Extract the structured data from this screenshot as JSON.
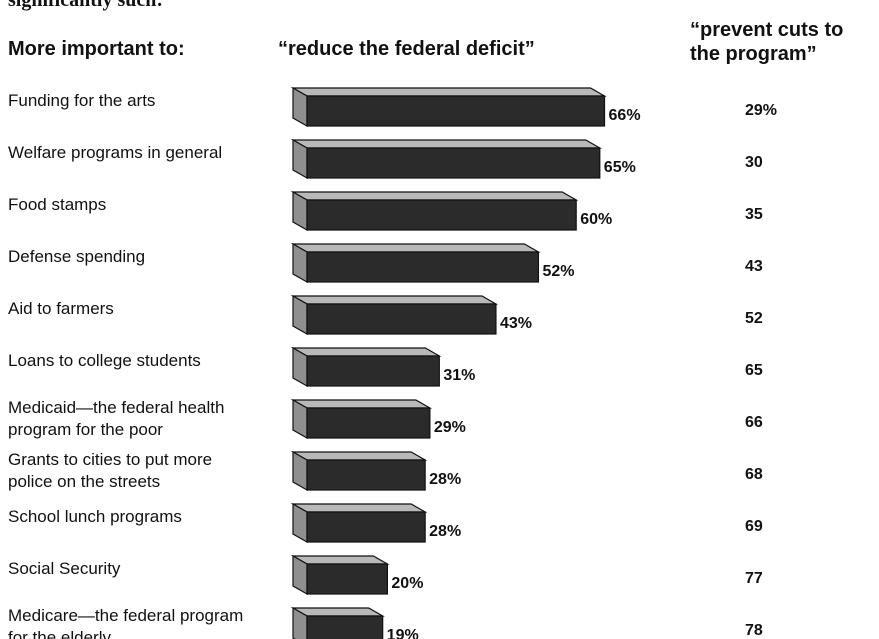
{
  "chart_data": {
    "type": "bar",
    "top_note": "significantly such:",
    "row_header": "More important to:",
    "series": [
      {
        "name": "“reduce the federal deficit”",
        "values": [
          66,
          65,
          60,
          52,
          43,
          31,
          29,
          28,
          28,
          20,
          19
        ]
      },
      {
        "name_lines": [
          "“prevent cuts to",
          "the program”"
        ],
        "values": [
          29,
          30,
          35,
          43,
          52,
          65,
          66,
          68,
          69,
          77,
          78
        ]
      }
    ],
    "categories": [
      [
        "Funding for the arts"
      ],
      [
        "Welfare programs in general"
      ],
      [
        "Food stamps"
      ],
      [
        "Defense spending"
      ],
      [
        "Aid to farmers"
      ],
      [
        "Loans to college students"
      ],
      [
        "Medicaid—the federal health",
        "program for the poor"
      ],
      [
        "Grants to cities to put more",
        "police on the streets"
      ],
      [
        "School lunch programs"
      ],
      [
        "Social Security"
      ],
      [
        "Medicare—the federal program",
        "for the elderly"
      ]
    ],
    "bar_value_labels": [
      "66%",
      "65%",
      "60%",
      "52%",
      "43%",
      "31%",
      "29%",
      "28%",
      "28%",
      "20%",
      "19%"
    ],
    "right_value_labels": [
      "29%",
      "30",
      "35",
      "43",
      "52",
      "65",
      "66",
      "68",
      "69",
      "77",
      "78"
    ],
    "colors": {
      "bar_front": "#2b2b2b",
      "bar_top": "#b9b9b9",
      "bar_side": "#8f8f8f",
      "outline": "#111111"
    }
  }
}
